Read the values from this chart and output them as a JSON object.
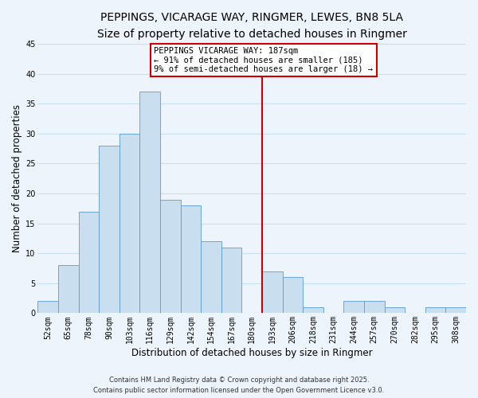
{
  "title_line1": "PEPPINGS, VICARAGE WAY, RINGMER, LEWES, BN8 5LA",
  "title_line2": "Size of property relative to detached houses in Ringmer",
  "bar_labels": [
    "52sqm",
    "65sqm",
    "78sqm",
    "90sqm",
    "103sqm",
    "116sqm",
    "129sqm",
    "142sqm",
    "154sqm",
    "167sqm",
    "180sqm",
    "193sqm",
    "206sqm",
    "218sqm",
    "231sqm",
    "244sqm",
    "257sqm",
    "270sqm",
    "282sqm",
    "295sqm",
    "308sqm"
  ],
  "bar_values": [
    2,
    8,
    17,
    28,
    30,
    37,
    19,
    18,
    12,
    11,
    0,
    7,
    6,
    1,
    0,
    2,
    2,
    1,
    0,
    1,
    1
  ],
  "bar_color": "#c9dff0",
  "bar_edge_color": "#5b9bd5",
  "ylabel": "Number of detached properties",
  "xlabel": "Distribution of detached houses by size in Ringmer",
  "ylim": [
    0,
    45
  ],
  "yticks": [
    0,
    5,
    10,
    15,
    20,
    25,
    30,
    35,
    40,
    45
  ],
  "vline_x": 10.5,
  "vline_color": "#cc0000",
  "annotation_title": "PEPPINGS VICARAGE WAY: 187sqm",
  "annotation_line1": "← 91% of detached houses are smaller (185)",
  "annotation_line2": "9% of semi-detached houses are larger (18) →",
  "grid_color": "#c8dff0",
  "background_color": "#eef4fb",
  "footer_line1": "Contains HM Land Registry data © Crown copyright and database right 2025.",
  "footer_line2": "Contains public sector information licensed under the Open Government Licence v3.0.",
  "title_fontsize": 10,
  "subtitle_fontsize": 9,
  "tick_fontsize": 7,
  "label_fontsize": 8.5,
  "footer_fontsize": 6
}
